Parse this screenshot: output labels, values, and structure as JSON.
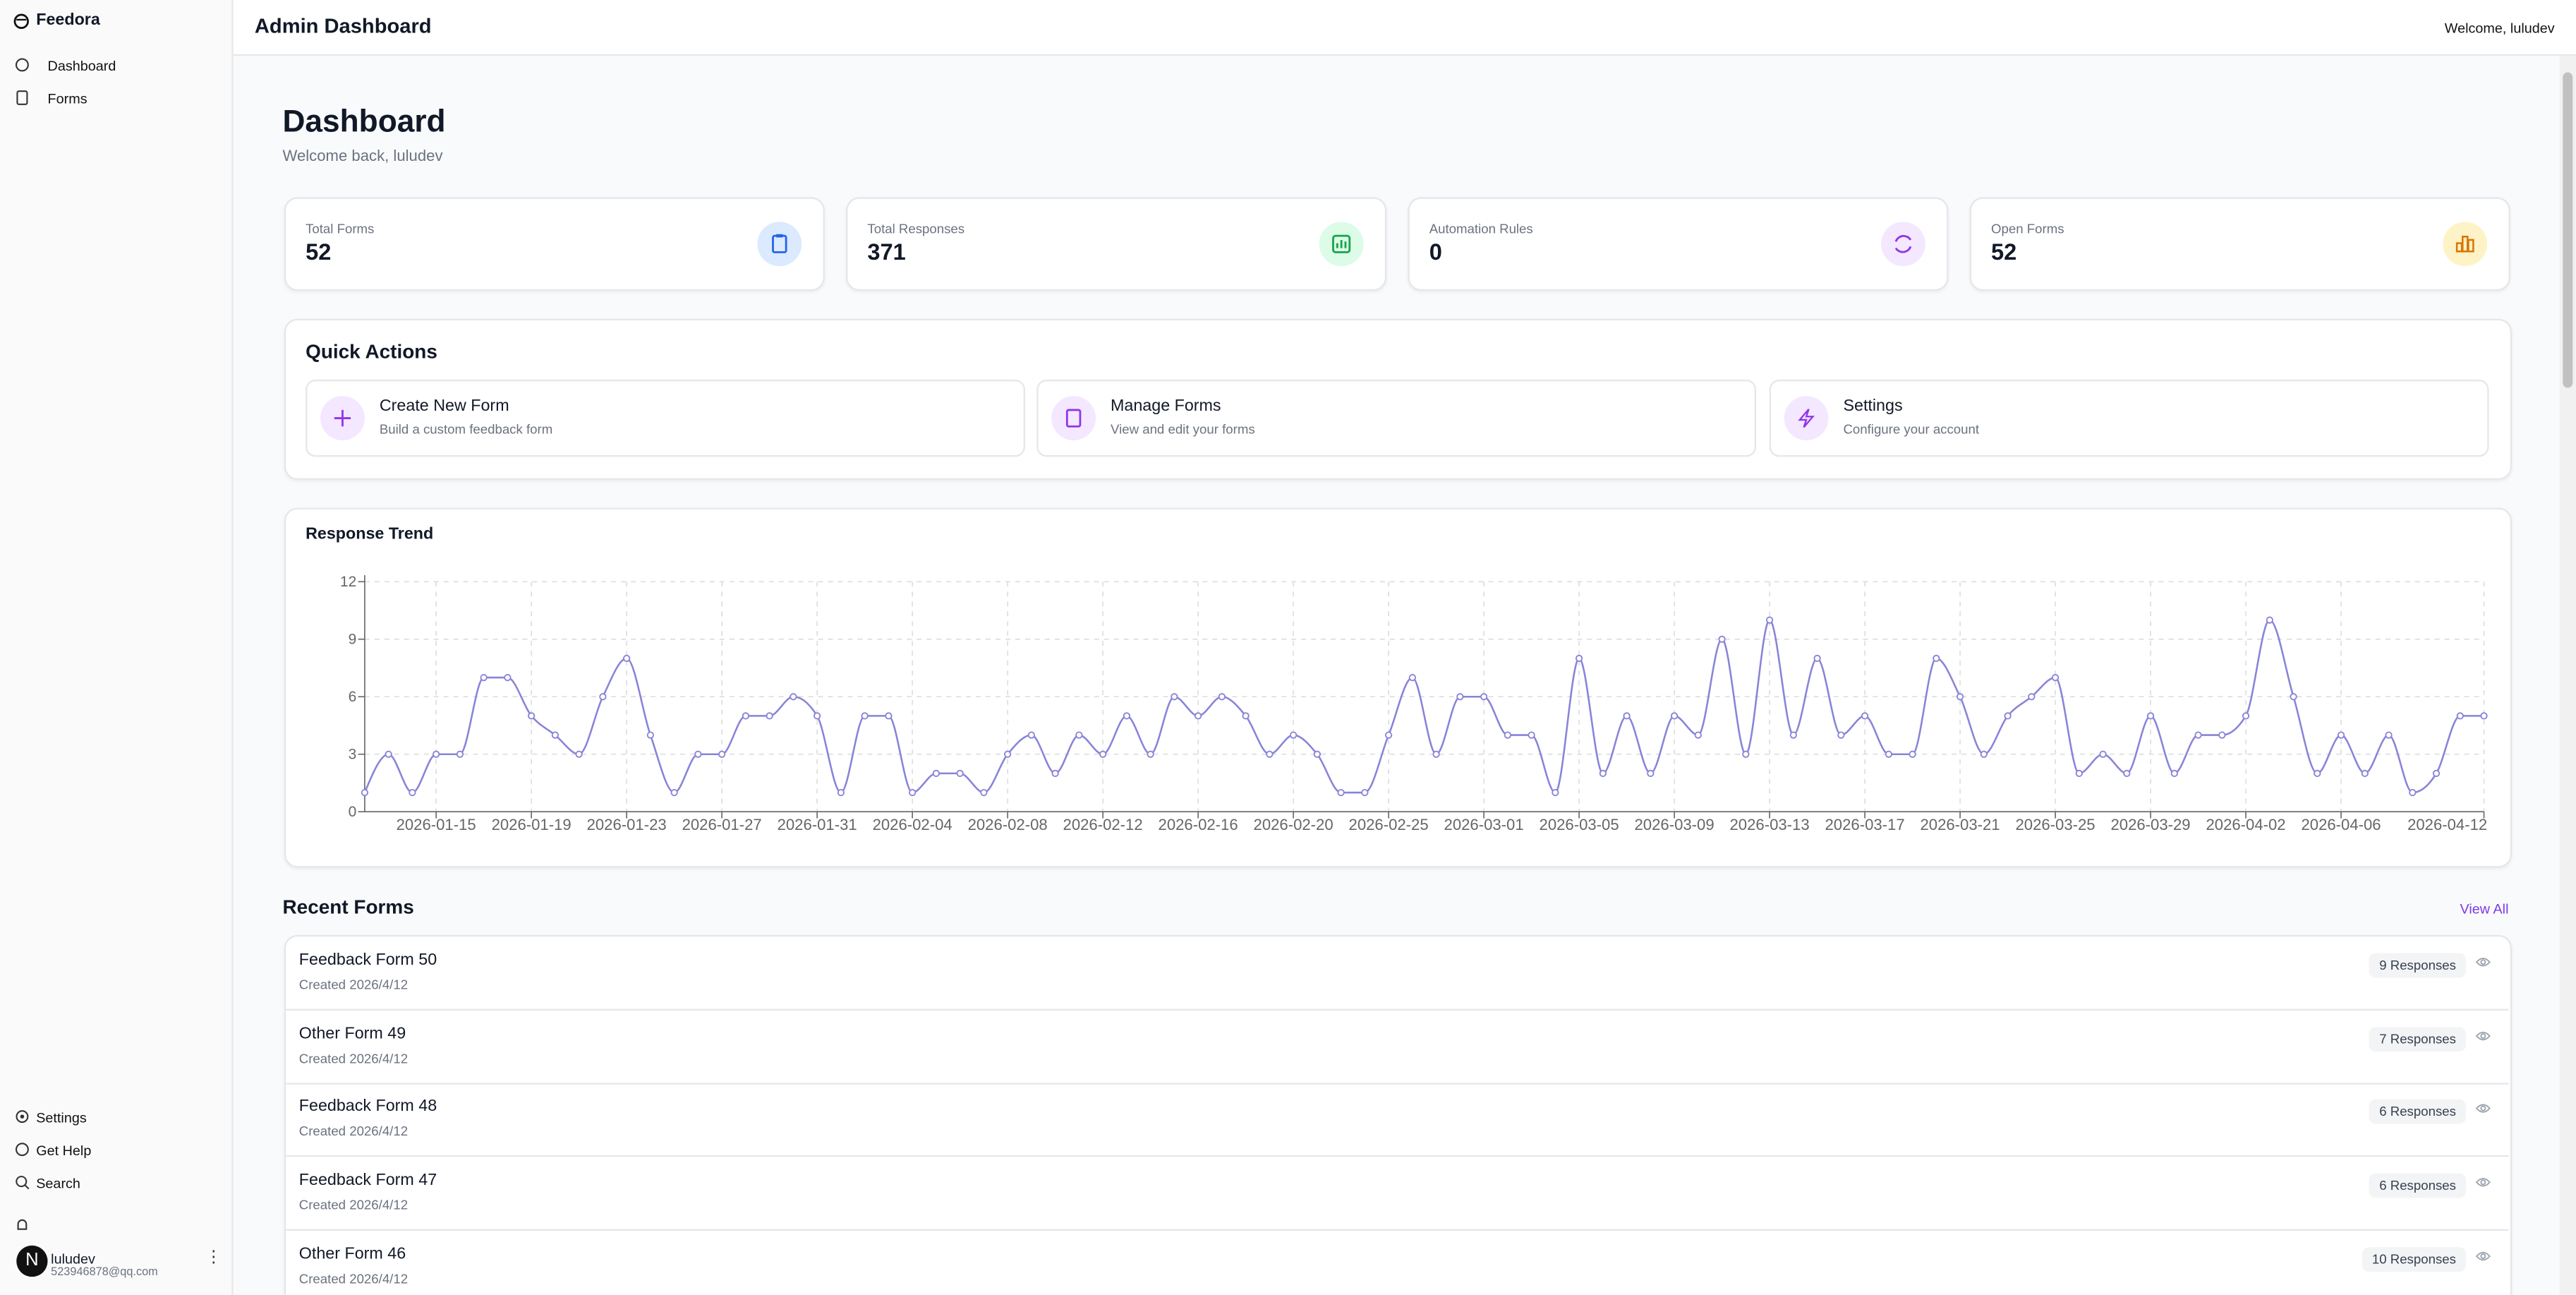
{
  "sidebar": {
    "brand": "Feedora",
    "nav": [
      "Dashboard",
      "Forms"
    ],
    "bottom_nav": [
      "Settings",
      "Get Help",
      "Search"
    ],
    "user": {
      "name": "luludev",
      "email": "523946878@qq.com"
    },
    "dev_badge": "N"
  },
  "header": {
    "title": "Admin Dashboard",
    "welcome": "Welcome, luludev"
  },
  "page": {
    "title": "Dashboard",
    "subtitle": "Welcome back, luludev"
  },
  "stats": [
    {
      "label": "Total Forms",
      "value": "52"
    },
    {
      "label": "Total Responses",
      "value": "371"
    },
    {
      "label": "Automation Rules",
      "value": "0"
    },
    {
      "label": "Open Forms",
      "value": "52"
    }
  ],
  "quick_actions": {
    "title": "Quick Actions",
    "items": [
      {
        "title": "Create New Form",
        "description": "Build a custom feedback form"
      },
      {
        "title": "Manage Forms",
        "description": "View and edit your forms"
      },
      {
        "title": "Settings",
        "description": "Configure your account"
      }
    ]
  },
  "chart_data": {
    "type": "line",
    "title": "Response Trend",
    "categories": [
      null,
      null,
      null,
      "2026-01-15",
      null,
      null,
      null,
      "2026-01-19",
      null,
      null,
      null,
      "2026-01-23",
      null,
      null,
      null,
      "2026-01-27",
      null,
      null,
      null,
      "2026-01-31",
      null,
      null,
      null,
      "2026-02-04",
      null,
      null,
      null,
      "2026-02-08",
      null,
      null,
      null,
      "2026-02-12",
      null,
      null,
      null,
      "2026-02-16",
      null,
      null,
      null,
      "2026-02-20",
      null,
      null,
      null,
      "2026-02-25",
      null,
      null,
      null,
      "2026-03-01",
      null,
      null,
      null,
      "2026-03-05",
      null,
      null,
      null,
      "2026-03-09",
      null,
      null,
      null,
      "2026-03-13",
      null,
      null,
      null,
      "2026-03-17",
      null,
      null,
      null,
      "2026-03-21",
      null,
      null,
      null,
      "2026-03-25",
      null,
      null,
      null,
      "2026-03-29",
      null,
      null,
      null,
      "2026-04-02",
      null,
      null,
      null,
      "2026-04-06",
      null,
      null,
      null,
      null,
      null,
      "2026-04-12"
    ],
    "series": [
      {
        "name": "Responses",
        "color": "#8884d8",
        "values": [
          1,
          3,
          1,
          3,
          3,
          7,
          7,
          5,
          4,
          3,
          6,
          8,
          4,
          1,
          3,
          3,
          5,
          5,
          6,
          5,
          1,
          5,
          5,
          1,
          2,
          2,
          1,
          3,
          4,
          2,
          4,
          3,
          5,
          3,
          6,
          5,
          6,
          5,
          3,
          4,
          3,
          1,
          1,
          4,
          7,
          3,
          6,
          6,
          4,
          4,
          1,
          8,
          2,
          5,
          2,
          5,
          4,
          9,
          3,
          10,
          4,
          8,
          4,
          5,
          3,
          3,
          8,
          6,
          3,
          5,
          6,
          7,
          2,
          3,
          2,
          5,
          2,
          4,
          4,
          5,
          10,
          6,
          2,
          4,
          2,
          4,
          1,
          2,
          5,
          5
        ]
      }
    ],
    "ylim": [
      0,
      12
    ],
    "yticks": [
      0,
      3,
      6,
      9,
      12
    ],
    "grid": true
  },
  "recent_forms": {
    "title": "Recent Forms",
    "view_all": "View All",
    "items": [
      {
        "name": "Feedback Form 50",
        "created": "Created 2026/4/12",
        "responses": "9 Responses"
      },
      {
        "name": "Other Form 49",
        "created": "Created 2026/4/12",
        "responses": "7 Responses"
      },
      {
        "name": "Feedback Form 48",
        "created": "Created 2026/4/12",
        "responses": "6 Responses"
      },
      {
        "name": "Feedback Form 47",
        "created": "Created 2026/4/12",
        "responses": "6 Responses"
      },
      {
        "name": "Other Form 46",
        "created": "Created 2026/4/12",
        "responses": "10 Responses"
      }
    ]
  }
}
